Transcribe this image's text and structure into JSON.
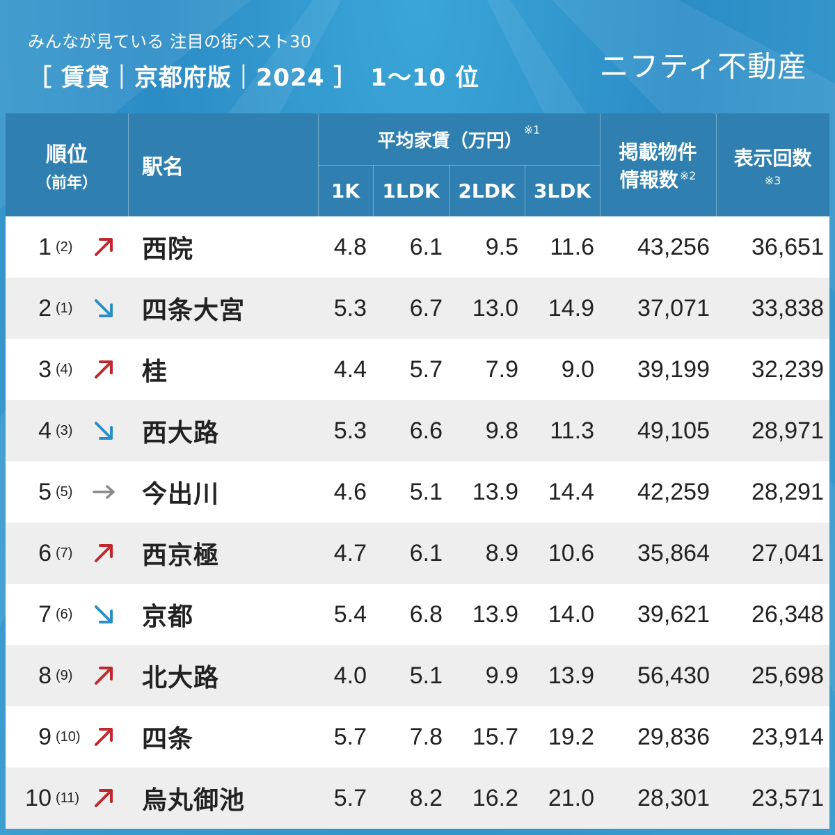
{
  "header": {
    "subtitle": "みんなが見ている 注目の街ベスト30",
    "title": "［ 賃貸｜京都府版｜2024 ］　1〜10 位",
    "brand": "ニフティ不動産"
  },
  "columns": {
    "rank": "順位",
    "rank_prev": "（前年）",
    "station": "駅名",
    "avg_rent": "平均家賃（万円）",
    "avg_rent_note": "※1",
    "rent_types": [
      "1K",
      "1LDK",
      "2LDK",
      "3LDK"
    ],
    "listings_line1": "掲載物件",
    "listings_line2": "情報数",
    "listings_note": "※2",
    "views": "表示回数",
    "views_note": "※3"
  },
  "colors": {
    "up": "#c0282d",
    "down": "#2a8fc6",
    "same": "#888888"
  },
  "rows": [
    {
      "rank": "1",
      "prev": "(2)",
      "trend": "up",
      "station": "西院",
      "k1": "4.8",
      "ldk1": "6.1",
      "ldk2": "9.5",
      "ldk3": "11.6",
      "listings": "43,256",
      "views": "36,651"
    },
    {
      "rank": "2",
      "prev": "(1)",
      "trend": "down",
      "station": "四条大宮",
      "k1": "5.3",
      "ldk1": "6.7",
      "ldk2": "13.0",
      "ldk3": "14.9",
      "listings": "37,071",
      "views": "33,838"
    },
    {
      "rank": "3",
      "prev": "(4)",
      "trend": "up",
      "station": "桂",
      "k1": "4.4",
      "ldk1": "5.7",
      "ldk2": "7.9",
      "ldk3": "9.0",
      "listings": "39,199",
      "views": "32,239"
    },
    {
      "rank": "4",
      "prev": "(3)",
      "trend": "down",
      "station": "西大路",
      "k1": "5.3",
      "ldk1": "6.6",
      "ldk2": "9.8",
      "ldk3": "11.3",
      "listings": "49,105",
      "views": "28,971"
    },
    {
      "rank": "5",
      "prev": "(5)",
      "trend": "same",
      "station": "今出川",
      "k1": "4.6",
      "ldk1": "5.1",
      "ldk2": "13.9",
      "ldk3": "14.4",
      "listings": "42,259",
      "views": "28,291"
    },
    {
      "rank": "6",
      "prev": "(7)",
      "trend": "up",
      "station": "西京極",
      "k1": "4.7",
      "ldk1": "6.1",
      "ldk2": "8.9",
      "ldk3": "10.6",
      "listings": "35,864",
      "views": "27,041"
    },
    {
      "rank": "7",
      "prev": "(6)",
      "trend": "down",
      "station": "京都",
      "k1": "5.4",
      "ldk1": "6.8",
      "ldk2": "13.9",
      "ldk3": "14.0",
      "listings": "39,621",
      "views": "26,348"
    },
    {
      "rank": "8",
      "prev": "(9)",
      "trend": "up",
      "station": "北大路",
      "k1": "4.0",
      "ldk1": "5.1",
      "ldk2": "9.9",
      "ldk3": "13.9",
      "listings": "56,430",
      "views": "25,698"
    },
    {
      "rank": "9",
      "prev": "(10)",
      "trend": "up",
      "station": "四条",
      "k1": "5.7",
      "ldk1": "7.8",
      "ldk2": "15.7",
      "ldk3": "19.2",
      "listings": "29,836",
      "views": "23,914"
    },
    {
      "rank": "10",
      "prev": "(11)",
      "trend": "up",
      "station": "烏丸御池",
      "k1": "5.7",
      "ldk1": "8.2",
      "ldk2": "16.2",
      "ldk3": "21.0",
      "listings": "28,301",
      "views": "23,571"
    }
  ]
}
